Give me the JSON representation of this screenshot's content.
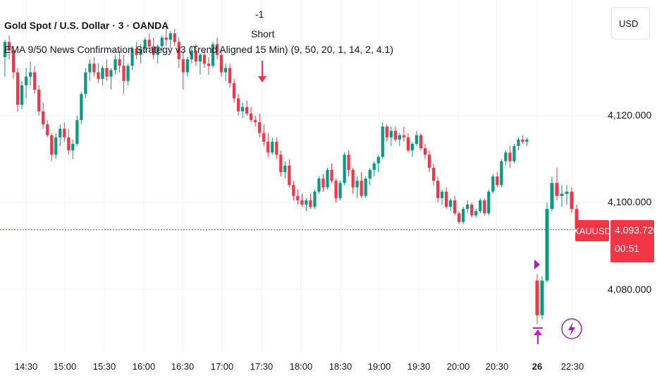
{
  "header": {
    "title": "Gold Spot / U.S. Dollar · 3 · OANDA",
    "strategy": "EMA 9/50 News Confirmation Strategy v3 (Trend Aligned 15 Min) (9, 50, 20, 1, 14, 2, 4.1)",
    "currency_button": "USD"
  },
  "signal": {
    "count": "-1",
    "label": "Short",
    "color": "#f23645"
  },
  "last_price": {
    "symbol": "XAUUSD",
    "value": "4,093.720",
    "countdown": "00:51",
    "color": "#f23645"
  },
  "colors": {
    "up": "#089981",
    "down": "#f23645",
    "marker": "#c020c0"
  },
  "chart_data": {
    "type": "candlestick",
    "y_range": [
      4066,
      4142
    ],
    "y_ticks": [
      "4,120.000",
      "4,100.000",
      "4,080.000"
    ],
    "y_tick_values": [
      4120,
      4100,
      4080
    ],
    "x_ticks": [
      "14:30",
      "15:00",
      "15:30",
      "16:00",
      "16:30",
      "17:00",
      "17:30",
      "18:00",
      "18:30",
      "19:00",
      "19:30",
      "20:00",
      "20:30",
      "26",
      "22:30"
    ],
    "grid": true,
    "last_price_line": 4093.72,
    "candles": [
      [
        4133.5,
        4137.5,
        4129,
        4137
      ],
      [
        4137,
        4138.5,
        4133,
        4135
      ],
      [
        4135,
        4136,
        4128.5,
        4130
      ],
      [
        4130,
        4131,
        4121,
        4122.5
      ],
      [
        4122.5,
        4128,
        4121.5,
        4127
      ],
      [
        4127,
        4131,
        4124,
        4129
      ],
      [
        4129,
        4132.5,
        4127,
        4130
      ],
      [
        4130,
        4131.5,
        4125,
        4126
      ],
      [
        4126,
        4127,
        4120,
        4121
      ],
      [
        4121,
        4123,
        4117,
        4118
      ],
      [
        4118,
        4119,
        4115,
        4115.5
      ],
      [
        4115.5,
        4116,
        4109.5,
        4111
      ],
      [
        4111,
        4116,
        4110,
        4115
      ],
      [
        4115,
        4118,
        4113,
        4117
      ],
      [
        4117,
        4118.5,
        4114,
        4115
      ],
      [
        4115,
        4117,
        4111,
        4112
      ],
      [
        4112,
        4114.5,
        4110,
        4113.5
      ],
      [
        4113.5,
        4120,
        4113,
        4119
      ],
      [
        4119,
        4125.5,
        4118,
        4125
      ],
      [
        4125,
        4131,
        4124,
        4130
      ],
      [
        4130,
        4133,
        4128,
        4132
      ],
      [
        4132,
        4133.5,
        4129,
        4130
      ],
      [
        4130,
        4132,
        4127.5,
        4128.5
      ],
      [
        4128.5,
        4131.5,
        4127,
        4131
      ],
      [
        4131,
        4133,
        4128,
        4129
      ],
      [
        4129,
        4131,
        4126,
        4130.5
      ],
      [
        4130.5,
        4134,
        4129.5,
        4133
      ],
      [
        4133,
        4135,
        4130,
        4131.5
      ],
      [
        4131.5,
        4134,
        4125,
        4128
      ],
      [
        4128,
        4132,
        4127,
        4131.5
      ],
      [
        4131.5,
        4136,
        4130.5,
        4135.5
      ],
      [
        4135.5,
        4137,
        4133,
        4134
      ],
      [
        4134,
        4136.5,
        4132,
        4135.5
      ],
      [
        4135.5,
        4138,
        4134.5,
        4137.5
      ],
      [
        4137.5,
        4139,
        4135,
        4136
      ],
      [
        4136,
        4138,
        4133,
        4134
      ],
      [
        4134,
        4136.5,
        4132,
        4136
      ],
      [
        4136,
        4138.5,
        4135,
        4138
      ],
      [
        4138,
        4140.5,
        4136,
        4137.5
      ],
      [
        4137.5,
        4139.5,
        4135.5,
        4139
      ],
      [
        4139,
        4140,
        4136,
        4137
      ],
      [
        4137,
        4138,
        4131,
        4133
      ],
      [
        4133,
        4135,
        4126,
        4130
      ],
      [
        4130,
        4133.5,
        4129,
        4133
      ],
      [
        4133,
        4136,
        4132,
        4135
      ],
      [
        4135,
        4136.5,
        4131.5,
        4132.5
      ],
      [
        4132.5,
        4134.5,
        4129.5,
        4134
      ],
      [
        4134,
        4135,
        4131,
        4132
      ],
      [
        4132,
        4133.5,
        4129.5,
        4131.5
      ],
      [
        4131.5,
        4137,
        4131,
        4136.5
      ],
      [
        4136.5,
        4138,
        4133,
        4134
      ],
      [
        4134,
        4135,
        4129,
        4130
      ],
      [
        4130,
        4132,
        4128,
        4131
      ],
      [
        4131,
        4132,
        4126.5,
        4127.5
      ],
      [
        4127.5,
        4128.5,
        4123,
        4124
      ],
      [
        4124,
        4125,
        4120,
        4121
      ],
      [
        4121,
        4123,
        4119.5,
        4122
      ],
      [
        4122,
        4123.5,
        4120,
        4120.5
      ],
      [
        4120.5,
        4122,
        4118.5,
        4119
      ],
      [
        4119,
        4120,
        4117.5,
        4118.5
      ],
      [
        4118.5,
        4120.5,
        4115,
        4116
      ],
      [
        4116,
        4118,
        4113,
        4114
      ],
      [
        4114,
        4116,
        4110.5,
        4111.5
      ],
      [
        4111.5,
        4115,
        4111,
        4114
      ],
      [
        4114,
        4115,
        4110,
        4111
      ],
      [
        4111,
        4112,
        4106,
        4107
      ],
      [
        4107,
        4109.5,
        4105.5,
        4108.5
      ],
      [
        4108.5,
        4110,
        4103.5,
        4104
      ],
      [
        4104,
        4105,
        4100.5,
        4101.5
      ],
      [
        4101.5,
        4103,
        4099.5,
        4100.5
      ],
      [
        4100.5,
        4102,
        4099,
        4099.5
      ],
      [
        4099.5,
        4101,
        4098,
        4100.5
      ],
      [
        4100.5,
        4102,
        4098.5,
        4099
      ],
      [
        4099,
        4103,
        4098.5,
        4102.5
      ],
      [
        4102.5,
        4106,
        4102,
        4105.5
      ],
      [
        4105.5,
        4106.5,
        4102.5,
        4103.5
      ],
      [
        4103.5,
        4108,
        4103,
        4107.5
      ],
      [
        4107.5,
        4109,
        4104.5,
        4105
      ],
      [
        4105,
        4105.5,
        4100,
        4101
      ],
      [
        4101,
        4105,
        4100.5,
        4104.5
      ],
      [
        4104.5,
        4111.5,
        4104,
        4111
      ],
      [
        4111,
        4112,
        4106,
        4107.5
      ],
      [
        4107.5,
        4108,
        4102,
        4103.5
      ],
      [
        4103.5,
        4106,
        4101,
        4105
      ],
      [
        4105,
        4107,
        4101,
        4101.5
      ],
      [
        4101.5,
        4106,
        4101,
        4105.5
      ],
      [
        4105.5,
        4108,
        4104,
        4107.5
      ],
      [
        4107.5,
        4109.5,
        4106,
        4109
      ],
      [
        4109,
        4111,
        4107,
        4110.5
      ],
      [
        4110.5,
        4118.5,
        4110,
        4117.5
      ],
      [
        4117.5,
        4118,
        4114,
        4115
      ],
      [
        4115,
        4117.5,
        4113,
        4116.5
      ],
      [
        4116.5,
        4117.5,
        4114,
        4114.5
      ],
      [
        4114.5,
        4116,
        4113,
        4115.5
      ],
      [
        4115.5,
        4117.5,
        4114,
        4115
      ],
      [
        4115,
        4116,
        4111.5,
        4112
      ],
      [
        4112,
        4114,
        4110.5,
        4113.5
      ],
      [
        4113.5,
        4116.5,
        4113,
        4115.5
      ],
      [
        4115.5,
        4116,
        4112,
        4112.5
      ],
      [
        4112.5,
        4113.5,
        4110,
        4111
      ],
      [
        4111,
        4112,
        4107,
        4108
      ],
      [
        4108,
        4109,
        4104,
        4105
      ],
      [
        4105,
        4106,
        4100,
        4101
      ],
      [
        4101,
        4103,
        4099.5,
        4102.5
      ],
      [
        4102.5,
        4103.5,
        4098.5,
        4099
      ],
      [
        4099,
        4101,
        4098,
        4100.5
      ],
      [
        4100.5,
        4101.5,
        4097,
        4097.5
      ],
      [
        4097.5,
        4098,
        4095,
        4095.5
      ],
      [
        4095.5,
        4099,
        4095,
        4098.5
      ],
      [
        4098.5,
        4100.5,
        4097.5,
        4099.5
      ],
      [
        4099.5,
        4100,
        4096.5,
        4097
      ],
      [
        4097,
        4098.5,
        4096.5,
        4098
      ],
      [
        4098,
        4101,
        4097.5,
        4100.5
      ],
      [
        4100.5,
        4101,
        4097,
        4097.5
      ],
      [
        4097.5,
        4103,
        4097,
        4102.5
      ],
      [
        4102.5,
        4106.5,
        4102,
        4106
      ],
      [
        4106,
        4107,
        4103.5,
        4104
      ],
      [
        4104,
        4110,
        4103.5,
        4109.5
      ],
      [
        4109.5,
        4112,
        4108.5,
        4111.5
      ],
      [
        4111.5,
        4113,
        4108,
        4109.5
      ],
      [
        4109.5,
        4113.5,
        4109,
        4113
      ],
      [
        4113,
        4115,
        4112,
        4114.5
      ],
      [
        4114.5,
        4115.5,
        4113.5,
        4114
      ],
      [
        4114,
        4115,
        4113,
        4114.5
      ],
      [
        4082,
        4083.5,
        4072,
        4074
      ],
      [
        4074,
        4083,
        4073,
        4082
      ],
      [
        4082,
        4100,
        4081.5,
        4098.5
      ],
      [
        4098.5,
        4106,
        4098,
        4104.5
      ],
      [
        4104.5,
        4108,
        4100.5,
        4101.5
      ],
      [
        4101.5,
        4104,
        4099,
        4102
      ],
      [
        4102,
        4104,
        4099.5,
        4102.5
      ],
      [
        4102.5,
        4103.5,
        4097.5,
        4098.5
      ],
      [
        4098.5,
        4099.5,
        4093.5,
        4093.7
      ]
    ]
  }
}
